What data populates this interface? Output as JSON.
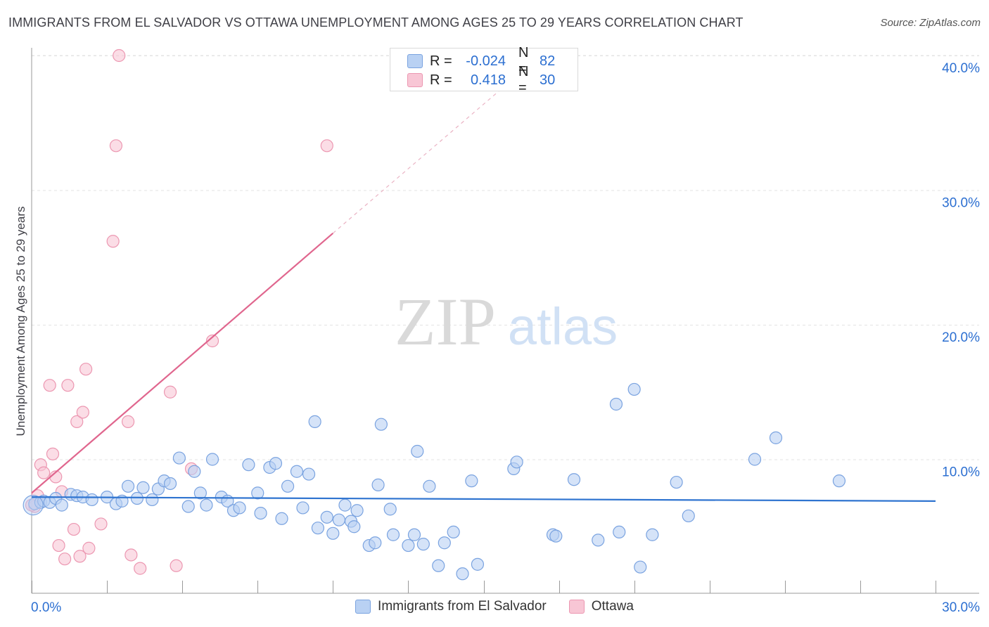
{
  "title": "IMMIGRANTS FROM EL SALVADOR VS OTTAWA UNEMPLOYMENT AMONG AGES 25 TO 29 YEARS CORRELATION CHART",
  "source": "Source: ZipAtlas.com",
  "watermark": {
    "zip": "ZIP",
    "atlas": "atlas"
  },
  "legend": {
    "rows": [
      {
        "r_label": "R =",
        "r_value": "-0.024",
        "n_label": "N =",
        "n_value": "82"
      },
      {
        "r_label": "R =",
        "r_value": "0.418",
        "n_label": "N =",
        "n_value": "30"
      }
    ]
  },
  "colors": {
    "blue_fill": "#b9d1f3",
    "blue_stroke": "#7aa3e0",
    "blue_line": "#2f74d0",
    "pink_fill": "#f8c6d5",
    "pink_stroke": "#ec97b1",
    "pink_line": "#e0668e",
    "tick_label": "#2c6fd1",
    "grid": "#e3e3e3"
  },
  "chart_data": {
    "type": "scatter",
    "title": "IMMIGRANTS FROM EL SALVADOR VS OTTAWA UNEMPLOYMENT AMONG AGES 25 TO 29 YEARS CORRELATION CHART",
    "xlabel": "",
    "ylabel": "Unemployment Among Ages 25 to 29 years",
    "xlim": [
      0,
      30
    ],
    "ylim": [
      0,
      40
    ],
    "x_tick_labels": [
      "0.0%",
      "30.0%"
    ],
    "y_ticks": [
      10,
      20,
      30,
      40
    ],
    "y_tick_labels": [
      "10.0%",
      "20.0%",
      "30.0%",
      "40.0%"
    ],
    "grid": true,
    "legend_position": "bottom",
    "series": [
      {
        "name": "Immigrants from El Salvador",
        "color": "#b9d1f3",
        "trend": {
          "x": [
            0,
            30
          ],
          "y": [
            7.2,
            6.9
          ],
          "style": "solid"
        },
        "points": [
          [
            0.1,
            6.7
          ],
          [
            0.3,
            6.8
          ],
          [
            0.4,
            6.9
          ],
          [
            0.6,
            6.8
          ],
          [
            0.8,
            7.1
          ],
          [
            1.0,
            6.6
          ],
          [
            1.3,
            7.4
          ],
          [
            1.5,
            7.3
          ],
          [
            1.7,
            7.2
          ],
          [
            2.0,
            7.0
          ],
          [
            2.5,
            7.2
          ],
          [
            2.8,
            6.7
          ],
          [
            3.0,
            6.9
          ],
          [
            3.2,
            8.0
          ],
          [
            3.5,
            7.1
          ],
          [
            3.7,
            7.9
          ],
          [
            4.0,
            7.0
          ],
          [
            4.2,
            7.8
          ],
          [
            4.4,
            8.4
          ],
          [
            4.6,
            8.2
          ],
          [
            4.9,
            10.1
          ],
          [
            5.2,
            6.5
          ],
          [
            5.4,
            9.1
          ],
          [
            5.6,
            7.5
          ],
          [
            5.8,
            6.6
          ],
          [
            6.0,
            10.0
          ],
          [
            6.3,
            7.2
          ],
          [
            6.5,
            6.9
          ],
          [
            6.7,
            6.2
          ],
          [
            6.9,
            6.4
          ],
          [
            7.2,
            9.6
          ],
          [
            7.5,
            7.5
          ],
          [
            7.6,
            6.0
          ],
          [
            7.9,
            9.4
          ],
          [
            8.1,
            9.7
          ],
          [
            8.3,
            5.6
          ],
          [
            8.5,
            8.0
          ],
          [
            8.8,
            9.1
          ],
          [
            9.0,
            6.4
          ],
          [
            9.2,
            8.9
          ],
          [
            9.4,
            12.8
          ],
          [
            9.5,
            4.9
          ],
          [
            9.8,
            5.7
          ],
          [
            10.0,
            4.5
          ],
          [
            10.2,
            5.5
          ],
          [
            10.4,
            6.6
          ],
          [
            10.6,
            5.4
          ],
          [
            10.7,
            5.0
          ],
          [
            10.8,
            6.2
          ],
          [
            11.2,
            3.6
          ],
          [
            11.4,
            3.8
          ],
          [
            11.5,
            8.1
          ],
          [
            11.6,
            12.6
          ],
          [
            11.9,
            6.3
          ],
          [
            12.0,
            4.4
          ],
          [
            12.5,
            3.6
          ],
          [
            12.7,
            4.4
          ],
          [
            12.8,
            10.6
          ],
          [
            13.0,
            3.7
          ],
          [
            13.2,
            8.0
          ],
          [
            13.5,
            2.1
          ],
          [
            13.7,
            3.8
          ],
          [
            14.0,
            4.6
          ],
          [
            14.3,
            1.5
          ],
          [
            14.6,
            8.4
          ],
          [
            14.8,
            2.2
          ],
          [
            16.0,
            9.3
          ],
          [
            16.1,
            9.8
          ],
          [
            17.3,
            4.4
          ],
          [
            17.4,
            4.3
          ],
          [
            18.0,
            8.5
          ],
          [
            18.8,
            4.0
          ],
          [
            19.4,
            14.1
          ],
          [
            19.5,
            4.6
          ],
          [
            20.0,
            15.2
          ],
          [
            20.2,
            2.0
          ],
          [
            20.6,
            4.4
          ],
          [
            21.4,
            8.3
          ],
          [
            21.8,
            5.8
          ],
          [
            24.0,
            10.0
          ],
          [
            24.7,
            11.6
          ],
          [
            26.8,
            8.4
          ]
        ]
      },
      {
        "name": "Ottawa",
        "color": "#f8c6d5",
        "trend": {
          "x": [
            0,
            10
          ],
          "y": [
            7.5,
            26.8
          ],
          "dash_to": [
            16,
            38.3
          ],
          "style": "solid+dashed"
        },
        "points": [
          [
            0.1,
            6.5
          ],
          [
            0.2,
            7.3
          ],
          [
            0.3,
            9.6
          ],
          [
            0.4,
            9.0
          ],
          [
            0.6,
            15.5
          ],
          [
            0.7,
            10.4
          ],
          [
            0.8,
            8.7
          ],
          [
            0.9,
            3.6
          ],
          [
            1.0,
            7.6
          ],
          [
            1.1,
            2.6
          ],
          [
            1.2,
            15.5
          ],
          [
            1.4,
            4.8
          ],
          [
            1.5,
            12.8
          ],
          [
            1.6,
            2.8
          ],
          [
            1.7,
            13.5
          ],
          [
            1.8,
            16.7
          ],
          [
            1.9,
            3.4
          ],
          [
            2.3,
            5.2
          ],
          [
            2.7,
            26.2
          ],
          [
            2.8,
            33.3
          ],
          [
            2.9,
            40.0
          ],
          [
            3.2,
            12.8
          ],
          [
            3.3,
            2.9
          ],
          [
            3.6,
            1.9
          ],
          [
            4.6,
            15.0
          ],
          [
            4.8,
            2.1
          ],
          [
            5.3,
            9.3
          ],
          [
            6.0,
            18.8
          ],
          [
            9.8,
            33.3
          ],
          [
            0.0,
            6.6
          ]
        ]
      }
    ]
  },
  "axis": {
    "y_label": "Unemployment Among Ages 25 to 29 years",
    "x_min_label": "0.0%",
    "x_max_label": "30.0%"
  },
  "bottom_legend": {
    "items": [
      {
        "label": "Immigrants from El Salvador"
      },
      {
        "label": "Ottawa"
      }
    ]
  }
}
